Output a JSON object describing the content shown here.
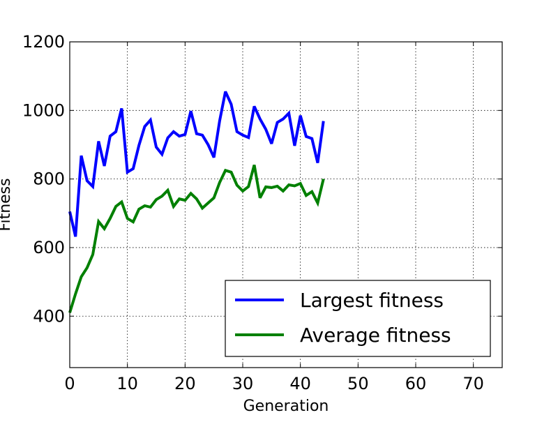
{
  "chart_data": {
    "type": "line",
    "title": "",
    "xlabel": "Generation",
    "ylabel": "Fitness",
    "xlim": [
      0,
      75
    ],
    "ylim": [
      250,
      1200
    ],
    "xticks": [
      0,
      10,
      20,
      30,
      40,
      50,
      60,
      70
    ],
    "yticks": [
      400,
      600,
      800,
      1000,
      1200
    ],
    "grid": true,
    "legend_position": "lower-right",
    "x": [
      0,
      1,
      2,
      3,
      4,
      5,
      6,
      7,
      8,
      9,
      10,
      11,
      12,
      13,
      14,
      15,
      16,
      17,
      18,
      19,
      20,
      21,
      22,
      23,
      24,
      25,
      26,
      27,
      28,
      29,
      30,
      31,
      32,
      33,
      34,
      35,
      36,
      37,
      38,
      39,
      40,
      41,
      42,
      43,
      44
    ],
    "series": [
      {
        "name": "Largest fitness",
        "color": "#0000ff",
        "values": [
          705,
          632,
          868,
          795,
          778,
          910,
          838,
          925,
          938,
          1006,
          820,
          830,
          898,
          953,
          972,
          893,
          872,
          920,
          938,
          925,
          930,
          998,
          932,
          928,
          900,
          863,
          970,
          1055,
          1018,
          938,
          928,
          921,
          1012,
          975,
          945,
          903,
          965,
          975,
          992,
          897,
          985,
          924,
          918,
          847,
          969
        ]
      },
      {
        "name": "Average fitness",
        "color": "#008000",
        "values": [
          410,
          465,
          515,
          541,
          580,
          676,
          655,
          685,
          720,
          733,
          685,
          675,
          712,
          722,
          718,
          740,
          750,
          767,
          720,
          742,
          738,
          758,
          742,
          715,
          730,
          745,
          790,
          825,
          820,
          782,
          765,
          778,
          841,
          745,
          777,
          775,
          779,
          765,
          783,
          780,
          787,
          752,
          763,
          730,
          800
        ]
      }
    ]
  }
}
